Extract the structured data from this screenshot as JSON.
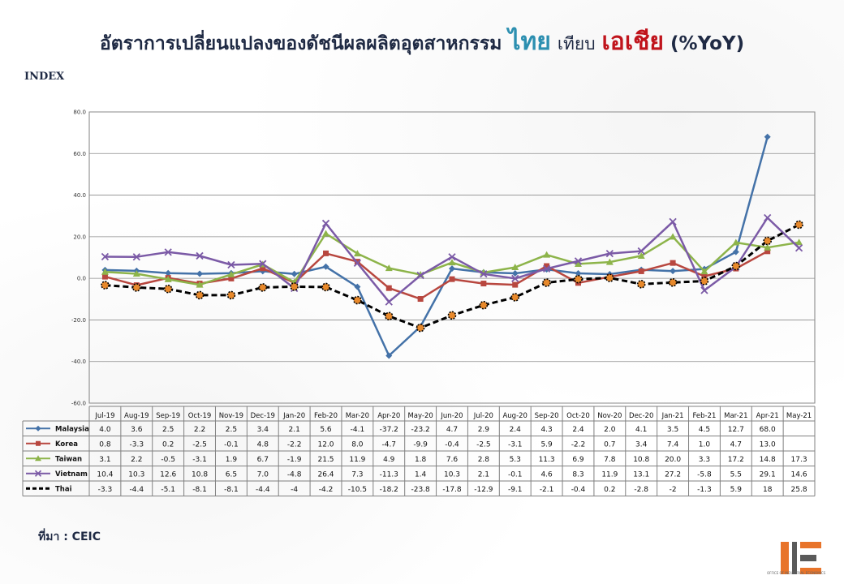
{
  "page": {
    "title_part1": "อัตราการเปลี่ยนแปลงของดัชนีผลผลิตอุตสาหกรรม",
    "title_thai": "ไทย",
    "title_compare": "เทียบ",
    "title_asia": "เอเชีย",
    "title_unit": "(%YoY)",
    "index_label": "INDEX",
    "source": "ที่มา : CEIC",
    "logo_text": "OFFICE OF INDUSTRIAL ECONOMICS"
  },
  "chart_data": {
    "type": "line",
    "title": "",
    "xlabel": "",
    "ylabel": "",
    "ylim": [
      -60,
      80
    ],
    "yticks": [
      80,
      60,
      40,
      20,
      0,
      -20,
      -40,
      -60
    ],
    "ytick_labels": [
      "80.0",
      "60.0",
      "40.0",
      "20.0",
      "0.0",
      "-20.0",
      "-40.0",
      "-60.0"
    ],
    "grid": true,
    "legend": "table-below",
    "categories": [
      "Jul-19",
      "Aug-19",
      "Sep-19",
      "Oct-19",
      "Nov-19",
      "Dec-19",
      "Jan-20",
      "Feb-20",
      "Mar-20",
      "Apr-20",
      "May-20",
      "Jun-20",
      "Jul-20",
      "Aug-20",
      "Sep-20",
      "Oct-20",
      "Nov-20",
      "Dec-20",
      "Jan-21",
      "Feb-21",
      "Mar-21",
      "Apr-21",
      "May-21"
    ],
    "series": [
      {
        "name": "Malaysia",
        "color": "#4472a8",
        "marker": "diamond",
        "dashed": false,
        "values": [
          4.0,
          3.6,
          2.5,
          2.2,
          2.5,
          3.4,
          2.1,
          5.6,
          -4.1,
          -37.2,
          -23.2,
          4.7,
          2.9,
          2.4,
          4.3,
          2.4,
          2.0,
          4.1,
          3.5,
          4.5,
          12.7,
          68.0,
          null
        ],
        "labels": [
          "4.0",
          "3.6",
          "2.5",
          "2.2",
          "2.5",
          "3.4",
          "2.1",
          "5.6",
          "-4.1",
          "-37.2",
          "-23.2",
          "4.7",
          "2.9",
          "2.4",
          "4.3",
          "2.4",
          "2.0",
          "4.1",
          "3.5",
          "4.5",
          "12.7",
          "68.0",
          ""
        ]
      },
      {
        "name": "Korea",
        "color": "#b8473f",
        "marker": "square",
        "dashed": false,
        "values": [
          0.8,
          -3.3,
          0.2,
          -2.5,
          -0.1,
          4.8,
          -2.2,
          12.0,
          8.0,
          -4.7,
          -9.9,
          -0.4,
          -2.5,
          -3.1,
          5.9,
          -2.2,
          0.7,
          3.4,
          7.4,
          1.0,
          4.7,
          13.0,
          null
        ],
        "labels": [
          "0.8",
          "-3.3",
          "0.2",
          "-2.5",
          "-0.1",
          "4.8",
          "-2.2",
          "12.0",
          "8.0",
          "-4.7",
          "-9.9",
          "-0.4",
          "-2.5",
          "-3.1",
          "5.9",
          "-2.2",
          "0.7",
          "3.4",
          "7.4",
          "1.0",
          "4.7",
          "13.0",
          ""
        ]
      },
      {
        "name": "Taiwan",
        "color": "#8db44a",
        "marker": "triangle",
        "dashed": false,
        "values": [
          3.1,
          2.2,
          -0.5,
          -3.1,
          1.9,
          6.7,
          -1.9,
          21.5,
          11.9,
          4.9,
          1.8,
          7.6,
          2.8,
          5.3,
          11.3,
          6.9,
          7.8,
          10.8,
          20.0,
          3.3,
          17.2,
          14.8,
          17.3
        ],
        "labels": [
          "3.1",
          "2.2",
          "-0.5",
          "-3.1",
          "1.9",
          "6.7",
          "-1.9",
          "21.5",
          "11.9",
          "4.9",
          "1.8",
          "7.6",
          "2.8",
          "5.3",
          "11.3",
          "6.9",
          "7.8",
          "10.8",
          "20.0",
          "3.3",
          "17.2",
          "14.8",
          "17.3"
        ]
      },
      {
        "name": "Vietnam",
        "color": "#7b5aa6",
        "marker": "x",
        "dashed": false,
        "values": [
          10.4,
          10.3,
          12.6,
          10.8,
          6.5,
          7.0,
          -4.8,
          26.4,
          7.3,
          -11.3,
          1.4,
          10.3,
          2.1,
          -0.1,
          4.6,
          8.3,
          11.9,
          13.1,
          27.2,
          -5.8,
          5.5,
          29.1,
          14.6
        ],
        "labels": [
          "10.4",
          "10.3",
          "12.6",
          "10.8",
          "6.5",
          "7.0",
          "-4.8",
          "26.4",
          "7.3",
          "-11.3",
          "1.4",
          "10.3",
          "2.1",
          "-0.1",
          "4.6",
          "8.3",
          "11.9",
          "13.1",
          "27.2",
          "-5.8",
          "5.5",
          "29.1",
          "14.6"
        ]
      },
      {
        "name": "Thai",
        "color": "#000000",
        "marker": "circle-orange",
        "dashed": true,
        "values": [
          -3.3,
          -4.4,
          -5.1,
          -8.1,
          -8.1,
          -4.4,
          -4,
          -4.2,
          -10.5,
          -18.2,
          -23.8,
          -17.8,
          -12.9,
          -9.1,
          -2.1,
          -0.4,
          0.2,
          -2.8,
          -2,
          -1.3,
          5.9,
          18,
          25.8
        ],
        "labels": [
          "-3.3",
          "-4.4",
          "-5.1",
          "-8.1",
          "-8.1",
          "-4.4",
          "-4",
          "-4.2",
          "-10.5",
          "-18.2",
          "-23.8",
          "-17.8",
          "-12.9",
          "-9.1",
          "-2.1",
          "-0.4",
          "0.2",
          "-2.8",
          "-2",
          "-1.3",
          "5.9",
          "18",
          "25.8"
        ]
      }
    ]
  }
}
